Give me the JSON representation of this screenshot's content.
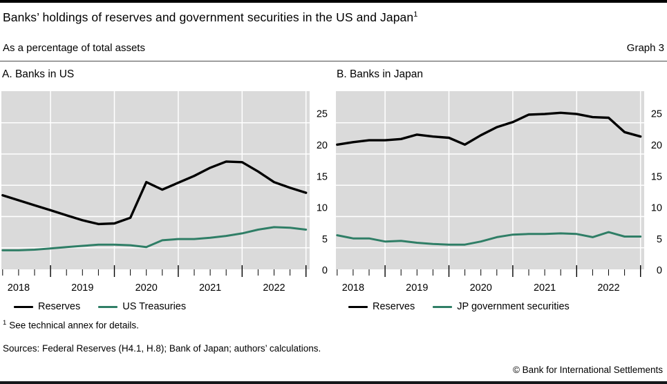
{
  "header": {
    "title": "Banks’ holdings of reserves and government securities in the US and Japan",
    "title_superscript": "1",
    "subtitle": "As a percentage of total assets",
    "graph_label": "Graph 3"
  },
  "colors": {
    "reserves_line": "#000000",
    "securities_line": "#2f7e66",
    "plot_bg": "#dadada",
    "grid": "#ffffff"
  },
  "chart_data": [
    {
      "type": "line",
      "title": "A. Banks in US",
      "x": [
        2018.25,
        2018.5,
        2018.75,
        2019.0,
        2019.25,
        2019.5,
        2019.75,
        2020.0,
        2020.25,
        2020.5,
        2020.75,
        2021.0,
        2021.25,
        2021.5,
        2021.75,
        2022.0,
        2022.25,
        2022.5,
        2022.75,
        2023.0
      ],
      "series": [
        {
          "name": "Reserves",
          "color": "#000000",
          "values": [
            13.4,
            12.6,
            11.8,
            11.0,
            10.2,
            9.4,
            8.8,
            8.9,
            9.8,
            15.5,
            14.3,
            15.4,
            16.5,
            17.8,
            18.8,
            18.7,
            17.2,
            15.5,
            14.6,
            13.8
          ]
        },
        {
          "name": "US Treasuries",
          "color": "#2f7e66",
          "values": [
            4.6,
            4.6,
            4.7,
            4.9,
            5.1,
            5.3,
            5.5,
            5.5,
            5.4,
            5.1,
            6.2,
            6.4,
            6.4,
            6.6,
            6.9,
            7.3,
            7.9,
            8.3,
            8.2,
            7.9
          ]
        }
      ],
      "axis": {
        "y_ticks": [
          0,
          5,
          10,
          15,
          20,
          25
        ],
        "y_labels_side": "right",
        "x_year_labels": [
          "2018",
          "2019",
          "2020",
          "2021",
          "2022"
        ],
        "x_range": [
          2018.25,
          2023.0
        ],
        "quarter_ticks": true,
        "grid": true,
        "legend_position": "below"
      }
    },
    {
      "type": "line",
      "title": "B. Banks in Japan",
      "x": [
        2018.25,
        2018.5,
        2018.75,
        2019.0,
        2019.25,
        2019.5,
        2019.75,
        2020.0,
        2020.25,
        2020.5,
        2020.75,
        2021.0,
        2021.25,
        2021.5,
        2021.75,
        2022.0,
        2022.25,
        2022.5,
        2022.75,
        2023.0
      ],
      "series": [
        {
          "name": "Reserves",
          "color": "#000000",
          "values": [
            21.5,
            21.9,
            22.2,
            22.2,
            22.4,
            23.1,
            22.8,
            22.6,
            21.5,
            23.0,
            24.3,
            25.1,
            26.3,
            26.4,
            26.6,
            26.4,
            25.9,
            25.8,
            23.5,
            22.8
          ]
        },
        {
          "name": "JP government securities",
          "color": "#2f7e66",
          "values": [
            7.0,
            6.5,
            6.5,
            6.0,
            6.1,
            5.8,
            5.6,
            5.5,
            5.5,
            6.0,
            6.7,
            7.1,
            7.2,
            7.2,
            7.3,
            7.2,
            6.7,
            7.5,
            6.8,
            6.8
          ]
        }
      ],
      "axis": {
        "y_ticks": [
          0,
          5,
          10,
          15,
          20,
          25
        ],
        "y_labels_side": "right",
        "x_year_labels": [
          "2018",
          "2019",
          "2020",
          "2021",
          "2022"
        ],
        "x_range": [
          2018.25,
          2023.0
        ],
        "quarter_ticks": true,
        "grid": true,
        "legend_position": "below"
      }
    }
  ],
  "footnote": {
    "marker": "1",
    "text": "See technical annex for details."
  },
  "sources": "Sources: Federal Reserves (H4.1, H.8); Bank of Japan; authors’ calculations.",
  "copyright": "© Bank for International Settlements"
}
